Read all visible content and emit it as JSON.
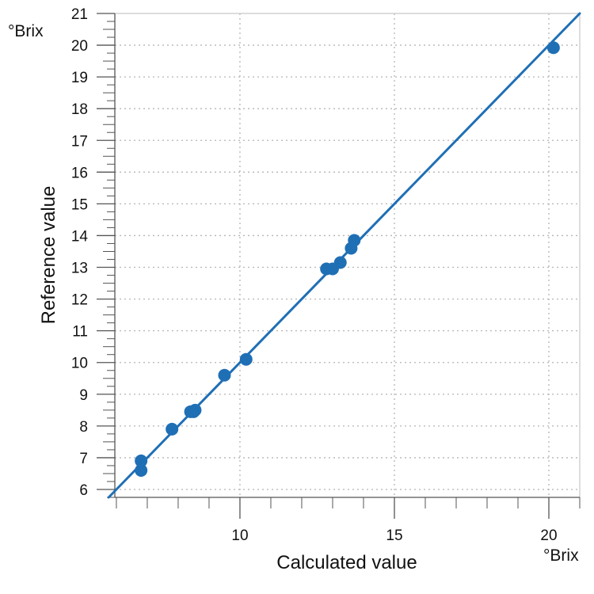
{
  "chart_data": {
    "type": "scatter",
    "xlabel": "Calculated value",
    "ylabel": "Reference value",
    "x_unit": "°Brix",
    "y_unit": "°Brix",
    "xlim": [
      5.95,
      21.0
    ],
    "ylim": [
      5.75,
      21.0
    ],
    "x_ticks": [
      10,
      15,
      20
    ],
    "y_ticks": [
      6,
      7,
      8,
      9,
      10,
      11,
      12,
      13,
      14,
      15,
      16,
      17,
      18,
      19,
      20,
      21
    ],
    "grid": true,
    "fit_line": {
      "x": [
        5.75,
        21.0
      ],
      "y": [
        5.75,
        21.0
      ]
    },
    "points": [
      {
        "x": 6.8,
        "y": 6.9
      },
      {
        "x": 6.8,
        "y": 6.6
      },
      {
        "x": 7.8,
        "y": 7.9
      },
      {
        "x": 8.4,
        "y": 8.45
      },
      {
        "x": 8.5,
        "y": 8.45
      },
      {
        "x": 8.55,
        "y": 8.5
      },
      {
        "x": 9.5,
        "y": 9.6
      },
      {
        "x": 10.2,
        "y": 10.1
      },
      {
        "x": 12.8,
        "y": 12.95
      },
      {
        "x": 13.0,
        "y": 12.95
      },
      {
        "x": 13.25,
        "y": 13.15
      },
      {
        "x": 13.6,
        "y": 13.6
      },
      {
        "x": 13.7,
        "y": 13.85
      },
      {
        "x": 20.15,
        "y": 19.92
      }
    ],
    "colors": {
      "series": "#1f6fb5",
      "grid": "#b5b5b5",
      "axis": "#555555"
    }
  }
}
